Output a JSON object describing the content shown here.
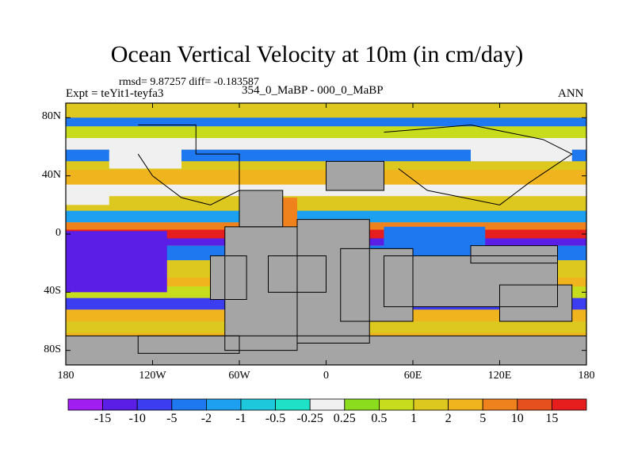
{
  "title": "Ocean Vertical Velocity at 10m (in cm/day)",
  "stats": "rmsd= 9.87257 diff= -0.183587",
  "experiment": "Expt = teYit1-teyfa3",
  "period": "354_0_MaBP - 000_0_MaBP",
  "season": "ANN",
  "axes": {
    "y_ticks": [
      {
        "label": "80N",
        "value": 80
      },
      {
        "label": "40N",
        "value": 40
      },
      {
        "label": "0",
        "value": 0
      },
      {
        "label": "40S",
        "value": -40
      },
      {
        "label": "80S",
        "value": -80
      }
    ],
    "x_ticks": [
      {
        "label": "180",
        "value": -180
      },
      {
        "label": "120W",
        "value": -120
      },
      {
        "label": "60W",
        "value": -60
      },
      {
        "label": "0",
        "value": 0
      },
      {
        "label": "60E",
        "value": 60
      },
      {
        "label": "120E",
        "value": 120
      },
      {
        "label": "180",
        "value": 180
      }
    ],
    "lat_range": [
      -90,
      90
    ],
    "lon_range": [
      -180,
      180
    ]
  },
  "colorbar": {
    "labels": [
      "-15",
      "-10",
      "-5",
      "-2",
      "-1",
      "-0.5",
      "-0.25",
      "0.25",
      "0.5",
      "1",
      "2",
      "5",
      "10",
      "15"
    ],
    "colors": [
      "#a01ef0",
      "#5a1ee6",
      "#3c3cf0",
      "#1e78f0",
      "#1ea0f0",
      "#1ec8dc",
      "#1ee1c8",
      "#f0f0f0",
      "#8cdc1e",
      "#c8dc1e",
      "#dcc81e",
      "#f0b41e",
      "#f0821e",
      "#e6501e",
      "#e61e1e"
    ]
  },
  "land_color": "#a5a5a5"
}
